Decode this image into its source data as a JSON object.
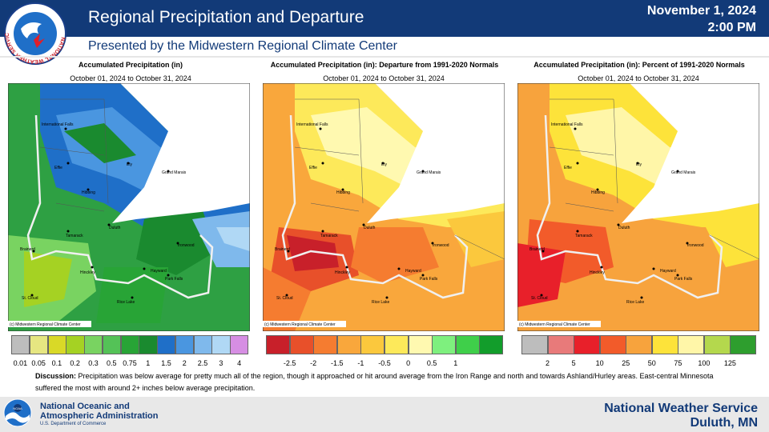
{
  "header": {
    "title": "Regional Precipitation and Departure",
    "subtitle": "Presented by the Midwestern Regional Climate Center",
    "date": "November 1, 2024",
    "time": "2:00 PM",
    "logo_text": "NATIONAL WEATHER SERVICE"
  },
  "panels": [
    {
      "title": "Accumulated Precipitation (in)",
      "dates": "October 01, 2024 to October 31, 2024",
      "copyright": "(c) Midwestern Regional Climate Center",
      "legend": {
        "colors": [
          "#bdbdbd",
          "#e6e681",
          "#d9d927",
          "#a5d223",
          "#79d361",
          "#54c257",
          "#28a436",
          "#1a8a2f",
          "#1f6fc8",
          "#4a96e0",
          "#7fb9ec",
          "#b0d8f5",
          "#d68ee3"
        ],
        "labels": [
          "0.01",
          "0.05",
          "0.1",
          "0.2",
          "0.3",
          "0.5",
          "0.75",
          "1",
          "1.5",
          "2",
          "2.5",
          "3",
          "4"
        ]
      }
    },
    {
      "title": "Accumulated Precipitation (in): Departure from 1991-2020 Normals",
      "dates": "October 01, 2024 to October 31, 2024",
      "copyright": "(c) Midwestern Regional Climate Center",
      "legend": {
        "colors": [
          "#c8202a",
          "#e8502a",
          "#f57c30",
          "#f9a73c",
          "#fbc83d",
          "#fde95a",
          "#fff9b0",
          "#7ef07e",
          "#3fcf4a",
          "#129d2b"
        ],
        "labels": [
          "-2.5",
          "-2",
          "-1.5",
          "-1",
          "-0.5",
          "0",
          "0.5",
          "1"
        ]
      }
    },
    {
      "title": "Accumulated Precipitation (in): Percent of 1991-2020 Normals",
      "dates": "October 01, 2024 to October 31, 2024",
      "copyright": "(c) Midwestern Regional Climate Center",
      "legend": {
        "colors": [
          "#bdbdbd",
          "#e87a7a",
          "#e8202a",
          "#f25b2a",
          "#f7a33d",
          "#fde33a",
          "#fff6a8",
          "#b4d84d",
          "#2e9e2e"
        ],
        "labels": [
          "2",
          "5",
          "10",
          "25",
          "50",
          "75",
          "100",
          "125"
        ]
      }
    }
  ],
  "cities": [
    "International Falls",
    "Effie",
    "Ely",
    "Grand Marais",
    "Hibbing",
    "Duluth",
    "Tamarack",
    "Ironwood",
    "Brainerd",
    "Hinckley",
    "Hayward",
    "Park Falls",
    "St. Cloud",
    "Rice Lake"
  ],
  "discussion": {
    "label": "Discussion:",
    "text": "Precipitation was below average for pretty much all of the region, though it approached or hit around average from the Iron Range and north and towards Ashland/Hurley areas. East-central Minnesota suffered the most with around 2+ inches below average precipitation."
  },
  "footer": {
    "noaa_line1": "National Oceanic and",
    "noaa_line2": "Atmospheric Administration",
    "noaa_dept": "U.S. Department of Commerce",
    "noaa_logo": "NOAA",
    "nws_line1": "National Weather Service",
    "nws_line2": "Duluth, MN"
  }
}
